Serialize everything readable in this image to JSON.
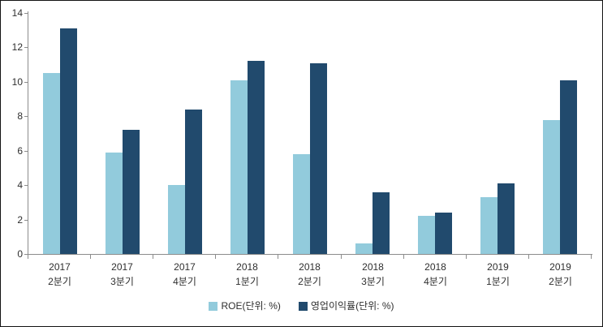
{
  "chart_data": {
    "type": "bar",
    "title": "",
    "xlabel": "",
    "ylabel": "",
    "categories": [
      "2017 2분기",
      "2017 3분기",
      "2017 4분기",
      "2018 1분기",
      "2018 2분기",
      "2018 3분기",
      "2018 4분기",
      "2019 1분기",
      "2019 2분기"
    ],
    "series": [
      {
        "name": "ROE(단위: %)",
        "color": "#92CBDC",
        "values": [
          10.5,
          5.9,
          4.0,
          10.1,
          5.8,
          0.6,
          2.2,
          3.3,
          7.8
        ]
      },
      {
        "name": "영업이익률(단위: %)",
        "color": "#214A6D",
        "values": [
          13.1,
          7.2,
          8.4,
          11.2,
          11.1,
          3.6,
          2.4,
          4.1,
          10.1
        ]
      }
    ],
    "ylim": [
      0,
      14
    ],
    "ytick_step": 2,
    "y_tick_labels": [
      "0",
      "2",
      "4",
      "6",
      "8",
      "10",
      "12",
      "14"
    ],
    "grid": false,
    "legend_position": "bottom-center"
  },
  "colors": {
    "axis_line": "#8C8C8C",
    "label_text": "#2E2E2E",
    "frame_border": "#141414",
    "background": "#FFFFFF"
  }
}
